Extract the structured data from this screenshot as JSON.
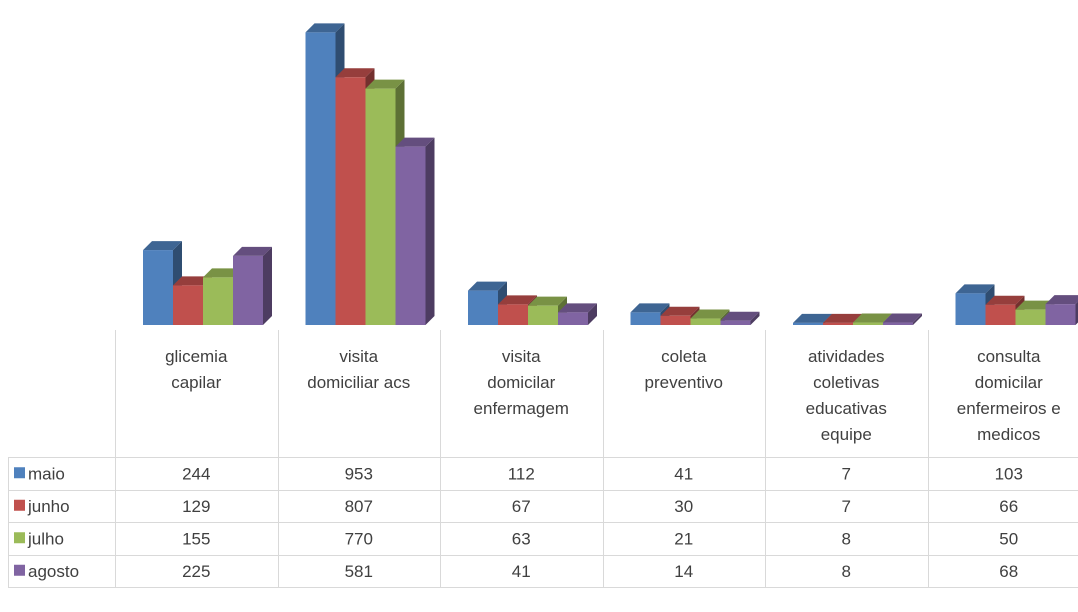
{
  "chart_data": {
    "type": "bar",
    "style": "3d-clustered-column-with-data-table",
    "categories": [
      "glicemia capilar",
      "visita domiciliar acs",
      "visita domicilar enfermagem",
      "coleta preventivo",
      "atividades coletivas educativas equipe",
      "consulta domicilar enfermeiros e medicos"
    ],
    "category_lines": [
      [
        "glicemia",
        "capilar"
      ],
      [
        "visita",
        "domiciliar acs"
      ],
      [
        "visita",
        "domicilar",
        "enfermagem"
      ],
      [
        "coleta",
        "preventivo"
      ],
      [
        "atividades",
        "coletivas",
        "educativas",
        "equipe"
      ],
      [
        "consulta",
        "domicilar",
        "enfermeiros e",
        "medicos"
      ]
    ],
    "series": [
      {
        "name": "maio",
        "color": "#4F81BD",
        "values": [
          244,
          953,
          112,
          41,
          7,
          103
        ]
      },
      {
        "name": "junho",
        "color": "#C0504D",
        "values": [
          129,
          807,
          67,
          30,
          7,
          66
        ]
      },
      {
        "name": "julho",
        "color": "#9BBB59",
        "values": [
          155,
          770,
          63,
          21,
          8,
          50
        ]
      },
      {
        "name": "agosto",
        "color": "#8064A2",
        "values": [
          225,
          581,
          41,
          14,
          8,
          68
        ]
      }
    ],
    "ylim": [
      0,
      1000
    ],
    "legend": "data-table",
    "grid": false
  }
}
